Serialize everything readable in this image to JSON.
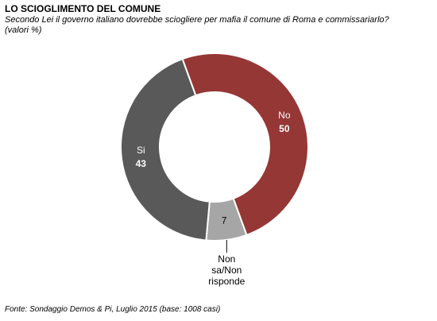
{
  "header": {
    "title": "LO SCIOGLIMENTO DEL COMUNE",
    "subtitle_line1": "Secondo Lei il governo italiano dovrebbe sciogliere per mafia il comune di Roma e commissariarlo?",
    "subtitle_line2": "(valori %)"
  },
  "footer": {
    "source": "Fonte: Sondaggio Demos & Pi, Luglio 2015 (base: 1008 casi)"
  },
  "chart_data": {
    "type": "pie",
    "donut": true,
    "categories": [
      "No",
      "Non sa/Non risponde",
      "Si"
    ],
    "values": [
      50,
      7,
      43
    ],
    "label_lines": [
      [
        "No"
      ],
      [
        "Non",
        "sa/Non",
        "risponde"
      ],
      [
        "Si"
      ]
    ],
    "colors": [
      "#953735",
      "#a6a6a6",
      "#595959"
    ],
    "label_colors": [
      "#ffffff",
      "#000000",
      "#ffffff"
    ]
  }
}
